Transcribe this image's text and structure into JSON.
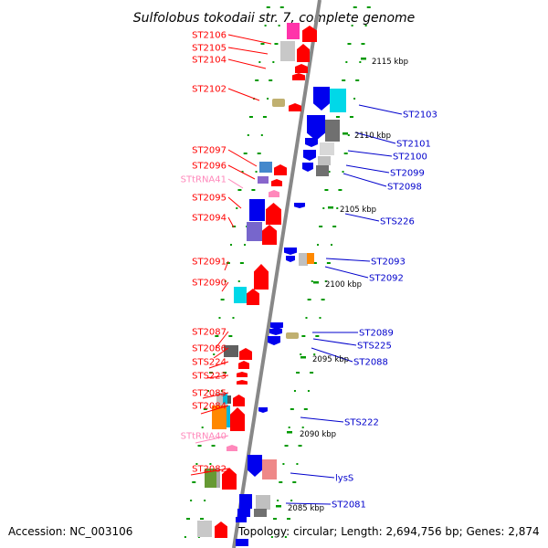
{
  "title": "Sulfolobus tokodaii str. 7, complete genome",
  "footer": {
    "accession": "Accession: NC_003106",
    "summary": "Topology: circular; Length: 2,694,756 bp; Genes: 2,874"
  },
  "colors": {
    "left_label": "#ff0000",
    "right_label": "#0000cc",
    "trna_label": "#ff88bb",
    "axis": "#888888",
    "ticks": "#009900"
  },
  "scale_marks": [
    "2115 kbp",
    "2110 kbp",
    "2105 kbp",
    "2100 kbp",
    "2095 kbp",
    "2090 kbp",
    "2085 kbp"
  ],
  "genes_left": [
    {
      "name": "ST2106",
      "kind": "protein"
    },
    {
      "name": "ST2105",
      "kind": "protein"
    },
    {
      "name": "ST2104",
      "kind": "protein"
    },
    {
      "name": "ST2102",
      "kind": "protein"
    },
    {
      "name": "ST2097",
      "kind": "protein"
    },
    {
      "name": "ST2096",
      "kind": "protein"
    },
    {
      "name": "STtRNA41",
      "kind": "trna"
    },
    {
      "name": "ST2095",
      "kind": "protein"
    },
    {
      "name": "ST2094",
      "kind": "protein"
    },
    {
      "name": "ST2091",
      "kind": "protein"
    },
    {
      "name": "ST2090",
      "kind": "protein"
    },
    {
      "name": "ST2087",
      "kind": "protein"
    },
    {
      "name": "ST2086",
      "kind": "protein"
    },
    {
      "name": "STS224",
      "kind": "protein"
    },
    {
      "name": "STS223",
      "kind": "protein"
    },
    {
      "name": "ST2085",
      "kind": "protein"
    },
    {
      "name": "ST2084",
      "kind": "protein"
    },
    {
      "name": "STtRNA40",
      "kind": "trna"
    },
    {
      "name": "ST2082",
      "kind": "protein"
    }
  ],
  "genes_right": [
    {
      "name": "ST2103"
    },
    {
      "name": "ST2101"
    },
    {
      "name": "ST2100"
    },
    {
      "name": "ST2099"
    },
    {
      "name": "ST2098"
    },
    {
      "name": "STS226"
    },
    {
      "name": "ST2093"
    },
    {
      "name": "ST2092"
    },
    {
      "name": "ST2089"
    },
    {
      "name": "STS225"
    },
    {
      "name": "ST2088"
    },
    {
      "name": "STS222"
    },
    {
      "name": "lysS"
    },
    {
      "name": "ST2081"
    }
  ]
}
